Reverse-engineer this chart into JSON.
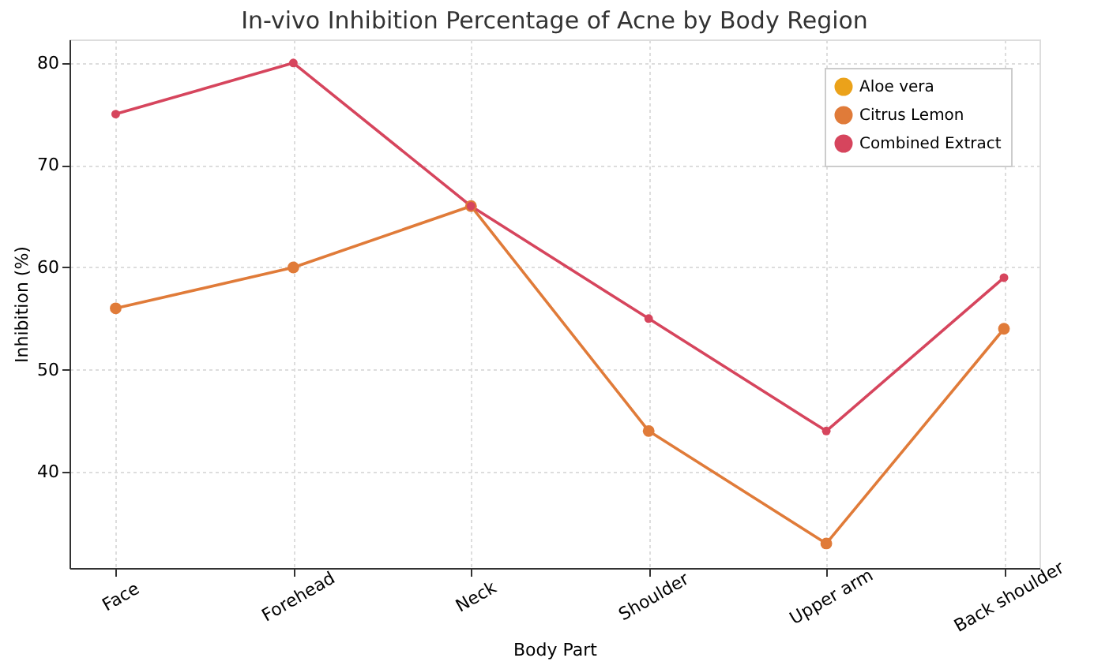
{
  "chart_data": {
    "type": "line",
    "title": "In-vivo Inhibition Percentage of Acne by Body Region",
    "xlabel": "Body Part",
    "ylabel": "Inhibition (%)",
    "categories": [
      "Face",
      "Forehead",
      "Neck",
      "Shoulder",
      "Upper arm",
      "Back shoulder"
    ],
    "series": [
      {
        "name": "Aloe vera",
        "color": "#eba21a",
        "values": [
          null,
          null,
          null,
          null,
          null,
          null
        ]
      },
      {
        "name": "Citrus Lemon",
        "color": "#e07b39",
        "values": [
          56,
          60,
          66,
          44,
          33,
          54
        ]
      },
      {
        "name": "Combined Extract",
        "color": "#d6455d",
        "values": [
          75,
          80,
          66,
          55,
          44,
          59
        ]
      }
    ],
    "ylim": [
      30.6,
      82.3
    ],
    "yticks": [
      40,
      50,
      60,
      70,
      80
    ],
    "grid": true,
    "legend": "top right",
    "marker": "circle",
    "line_style": "solid"
  }
}
